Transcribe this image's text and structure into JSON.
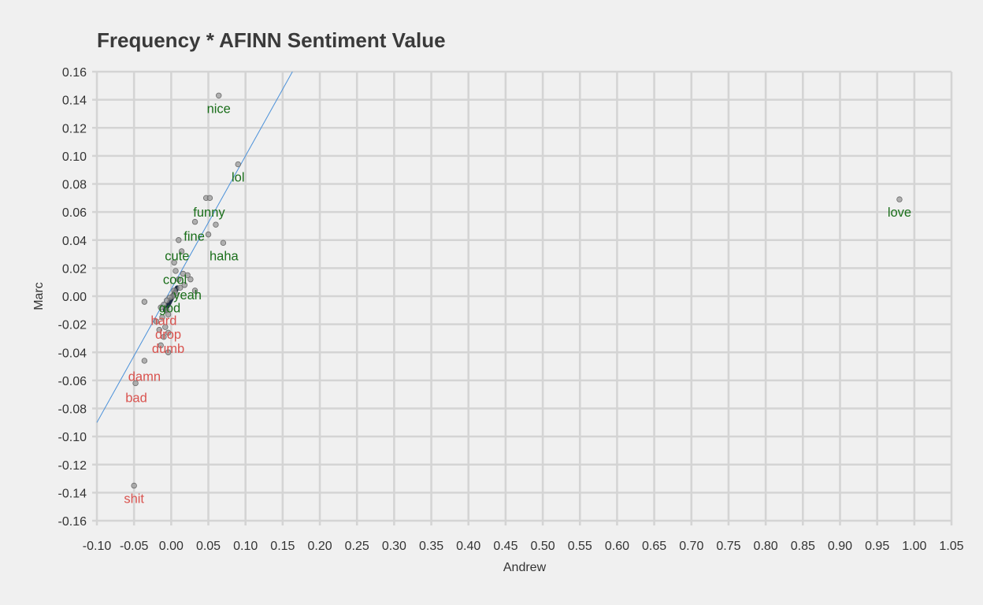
{
  "chart_data": {
    "type": "scatter",
    "title": "Frequency * AFINN Sentiment Value",
    "xlabel": "Andrew",
    "ylabel": "Marc",
    "xlim": [
      -0.1,
      1.05
    ],
    "ylim": [
      -0.16,
      0.16
    ],
    "xticks": [
      "-0.10",
      "-0.05",
      "0.00",
      "0.05",
      "0.10",
      "0.15",
      "0.20",
      "0.25",
      "0.30",
      "0.35",
      "0.40",
      "0.45",
      "0.50",
      "0.55",
      "0.60",
      "0.65",
      "0.70",
      "0.75",
      "0.80",
      "0.85",
      "0.90",
      "0.95",
      "1.00",
      "1.05"
    ],
    "yticks": [
      "0.16",
      "0.14",
      "0.12",
      "0.10",
      "0.08",
      "0.06",
      "0.04",
      "0.02",
      "0.00",
      "-0.02",
      "-0.04",
      "-0.06",
      "-0.08",
      "-0.10",
      "-0.12",
      "-0.14",
      "-0.16"
    ],
    "grid": true,
    "colors": {
      "positive": "#1a6e1a",
      "negative": "#d9534f",
      "points": "#9a9a9a",
      "fit_line": "#4a90d9"
    },
    "fit_line": {
      "slope": 0.95,
      "intercept": 0.005
    },
    "points": [
      {
        "x": 0.064,
        "y": 0.143
      },
      {
        "x": 0.09,
        "y": 0.094
      },
      {
        "x": 0.98,
        "y": 0.069
      },
      {
        "x": 0.047,
        "y": 0.07
      },
      {
        "x": 0.052,
        "y": 0.07
      },
      {
        "x": 0.032,
        "y": 0.053
      },
      {
        "x": 0.06,
        "y": 0.051
      },
      {
        "x": 0.05,
        "y": 0.044
      },
      {
        "x": 0.01,
        "y": 0.04
      },
      {
        "x": 0.07,
        "y": 0.038
      },
      {
        "x": 0.014,
        "y": 0.032
      },
      {
        "x": 0.004,
        "y": 0.024
      },
      {
        "x": 0.006,
        "y": 0.018
      },
      {
        "x": 0.016,
        "y": 0.016
      },
      {
        "x": 0.022,
        "y": 0.015
      },
      {
        "x": 0.026,
        "y": 0.012
      },
      {
        "x": 0.01,
        "y": 0.012
      },
      {
        "x": 0.018,
        "y": 0.008
      },
      {
        "x": 0.012,
        "y": 0.006
      },
      {
        "x": 0.032,
        "y": 0.004
      },
      {
        "x": 0.004,
        "y": 0.004
      },
      {
        "x": 0.006,
        "y": 0.002
      },
      {
        "x": 0.002,
        "y": 0.0
      },
      {
        "x": -0.002,
        "y": -0.001
      },
      {
        "x": -0.006,
        "y": -0.003
      },
      {
        "x": -0.036,
        "y": -0.004
      },
      {
        "x": -0.01,
        "y": -0.006
      },
      {
        "x": -0.014,
        "y": -0.008
      },
      {
        "x": -0.006,
        "y": -0.01
      },
      {
        "x": -0.004,
        "y": -0.013
      },
      {
        "x": -0.012,
        "y": -0.015
      },
      {
        "x": -0.02,
        "y": -0.018
      },
      {
        "x": -0.008,
        "y": -0.022
      },
      {
        "x": -0.016,
        "y": -0.024
      },
      {
        "x": -0.004,
        "y": -0.026
      },
      {
        "x": -0.01,
        "y": -0.029
      },
      {
        "x": -0.014,
        "y": -0.035
      },
      {
        "x": -0.004,
        "y": -0.04
      },
      {
        "x": -0.036,
        "y": -0.046
      },
      {
        "x": -0.048,
        "y": -0.062
      },
      {
        "x": -0.05,
        "y": -0.135
      }
    ],
    "labels": [
      {
        "text": "nice",
        "x": 0.064,
        "y": 0.134,
        "sentiment": "positive"
      },
      {
        "text": "lol",
        "x": 0.09,
        "y": 0.085,
        "sentiment": "positive"
      },
      {
        "text": "love",
        "x": 0.98,
        "y": 0.06,
        "sentiment": "positive"
      },
      {
        "text": "funny",
        "x": 0.051,
        "y": 0.06,
        "sentiment": "positive"
      },
      {
        "text": "fine",
        "x": 0.031,
        "y": 0.043,
        "sentiment": "positive"
      },
      {
        "text": "haha",
        "x": 0.071,
        "y": 0.029,
        "sentiment": "positive"
      },
      {
        "text": "cute",
        "x": 0.008,
        "y": 0.029,
        "sentiment": "positive"
      },
      {
        "text": "cool",
        "x": 0.005,
        "y": 0.012,
        "sentiment": "positive"
      },
      {
        "text": "yeah",
        "x": 0.022,
        "y": 0.001,
        "sentiment": "positive"
      },
      {
        "text": "god",
        "x": -0.002,
        "y": -0.008,
        "sentiment": "positive"
      },
      {
        "text": "hard",
        "x": -0.01,
        "y": -0.017,
        "sentiment": "negative"
      },
      {
        "text": "drop",
        "x": -0.004,
        "y": -0.027,
        "sentiment": "negative"
      },
      {
        "text": "dumb",
        "x": -0.004,
        "y": -0.037,
        "sentiment": "negative"
      },
      {
        "text": "damn",
        "x": -0.036,
        "y": -0.057,
        "sentiment": "negative"
      },
      {
        "text": "bad",
        "x": -0.047,
        "y": -0.072,
        "sentiment": "negative"
      },
      {
        "text": "shit",
        "x": -0.05,
        "y": -0.144,
        "sentiment": "negative"
      }
    ]
  }
}
